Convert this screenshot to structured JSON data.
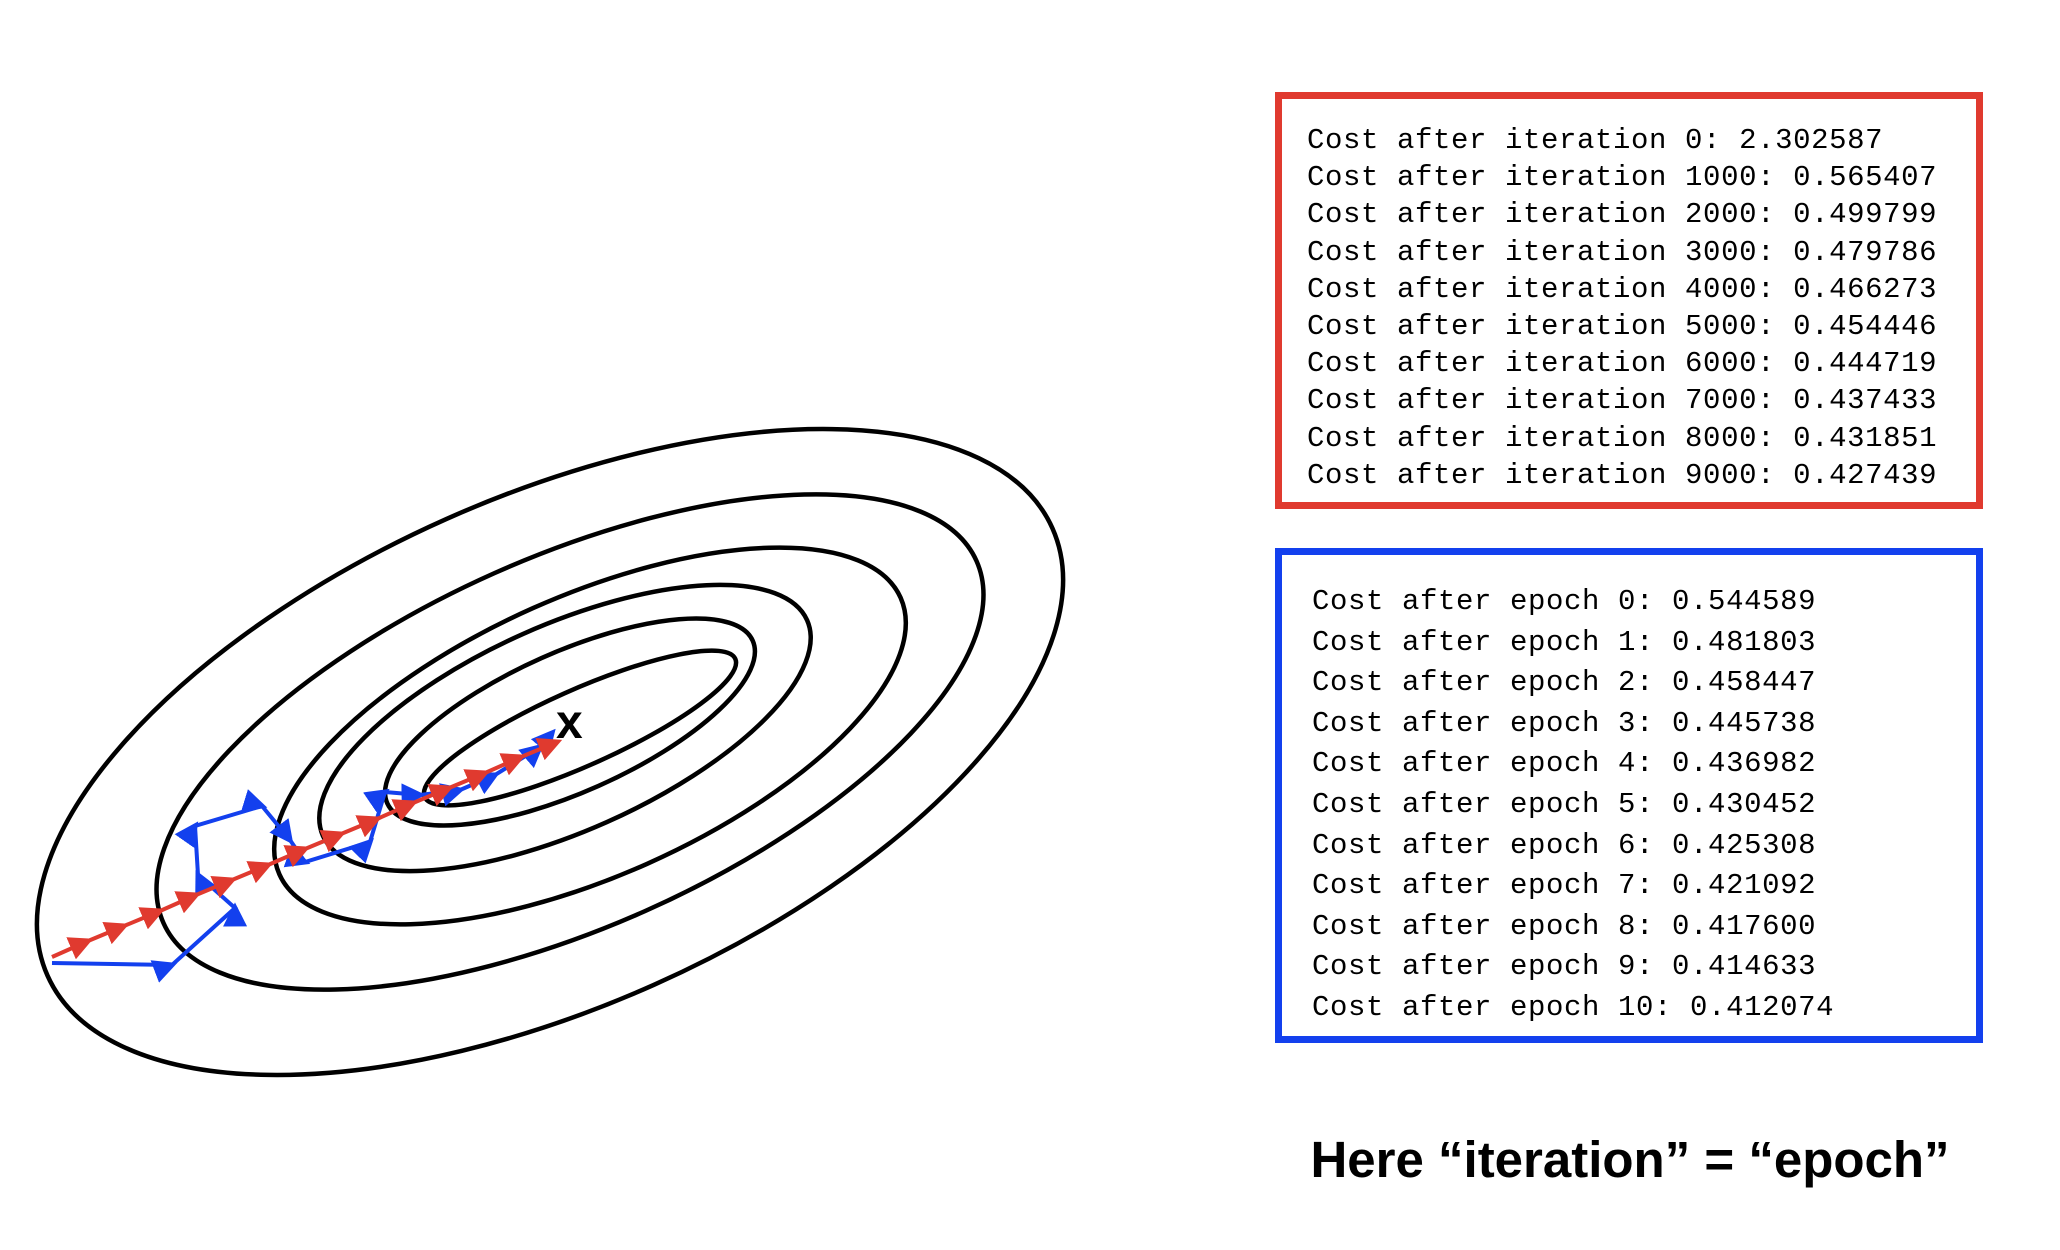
{
  "batch_log": {
    "color": "#e03a2f",
    "lines": [
      "Cost after iteration 0: 2.302587",
      "Cost after iteration 1000: 0.565407",
      "Cost after iteration 2000: 0.499799",
      "Cost after iteration 3000: 0.479786",
      "Cost after iteration 4000: 0.466273",
      "Cost after iteration 5000: 0.454446",
      "Cost after iteration 6000: 0.444719",
      "Cost after iteration 7000: 0.437433",
      "Cost after iteration 8000: 0.431851",
      "Cost after iteration 9000: 0.427439"
    ]
  },
  "epoch_log": {
    "color": "#1340ee",
    "lines": [
      "Cost after epoch 0: 0.544589",
      "Cost after epoch 1: 0.481803",
      "Cost after epoch 2: 0.458447",
      "Cost after epoch 3: 0.445738",
      "Cost after epoch 4: 0.436982",
      "Cost after epoch 5: 0.430452",
      "Cost after epoch 6: 0.425308",
      "Cost after epoch 7: 0.421092",
      "Cost after epoch 8: 0.417600",
      "Cost after epoch 9: 0.414633",
      "Cost after epoch 10: 0.412074"
    ]
  },
  "minimum_marker": "x",
  "caption": "Here “iteration” = “epoch”",
  "colors": {
    "batch_path": "#e03a2f",
    "stochastic_path": "#1340ee",
    "contours": "#000000"
  }
}
